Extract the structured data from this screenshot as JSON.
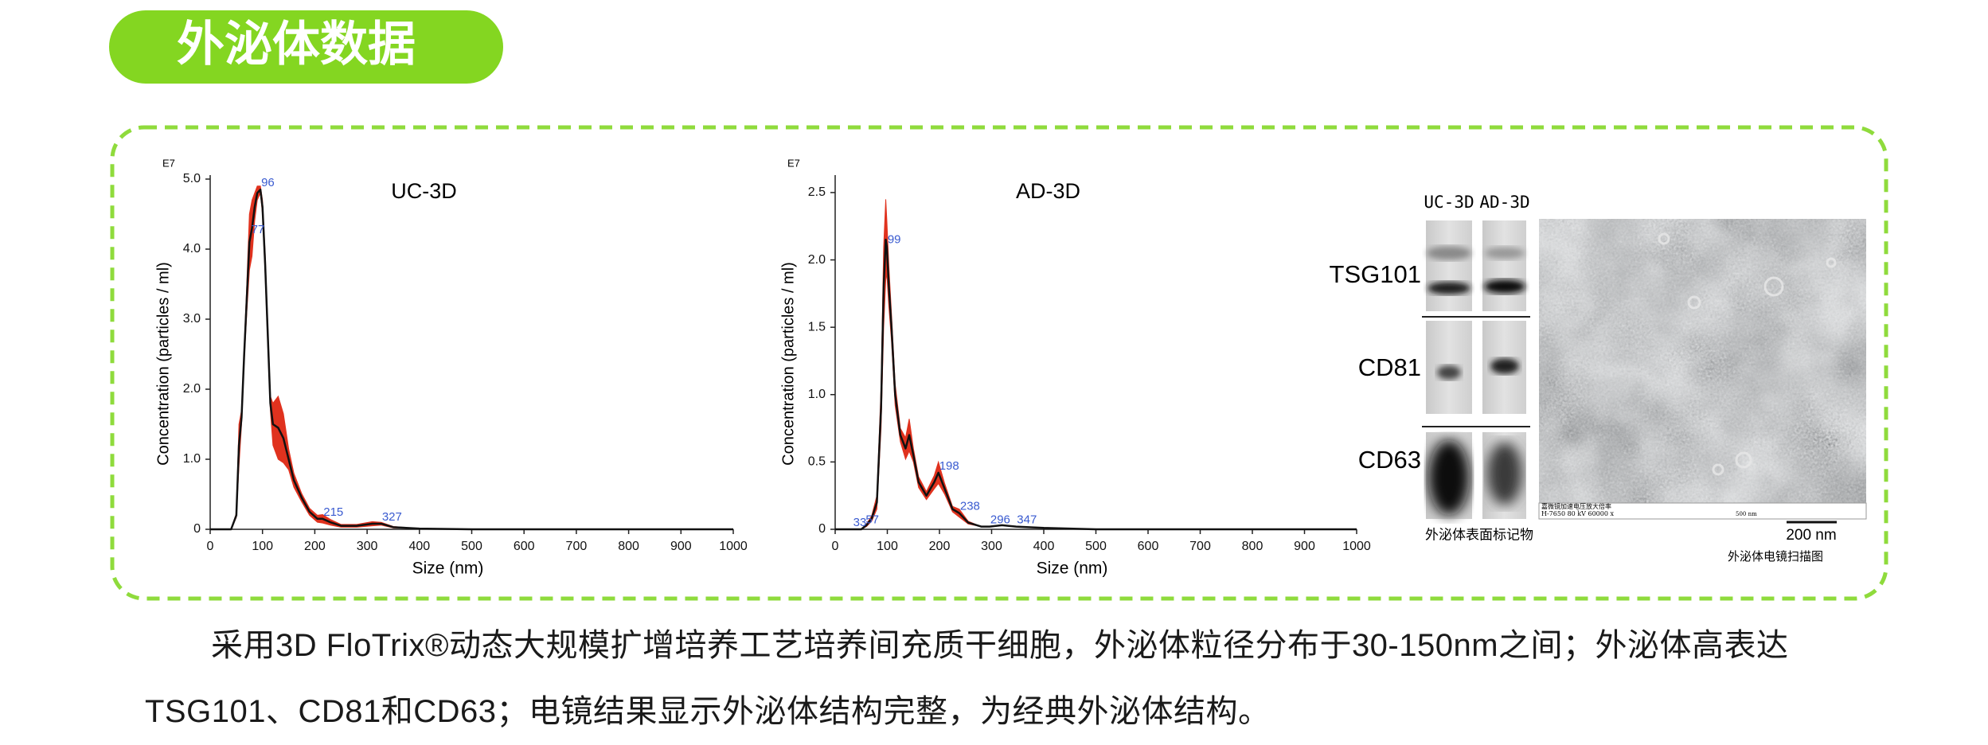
{
  "header": {
    "title": "外泌体数据"
  },
  "chart_data": [
    {
      "type": "line",
      "title": "UC-3D",
      "y_unit": "E7",
      "y_label": "Concentration (particles / ml)",
      "x_label": "Size (nm)",
      "color": "#111111",
      "band_color": "#e0321e",
      "peak_color": "#3a5bd0",
      "x": [
        0,
        40,
        50,
        55,
        60,
        65,
        70,
        75,
        80,
        85,
        90,
        96,
        100,
        105,
        110,
        115,
        120,
        130,
        140,
        150,
        160,
        175,
        190,
        205,
        215,
        230,
        250,
        280,
        310,
        327,
        350,
        400,
        500,
        1000
      ],
      "values": [
        0,
        0,
        0.2,
        1.2,
        1.6,
        2.5,
        3.3,
        4.1,
        4.3,
        4.6,
        4.8,
        4.85,
        4.6,
        3.8,
        2.8,
        1.8,
        1.5,
        1.45,
        1.3,
        1.0,
        0.7,
        0.45,
        0.25,
        0.15,
        0.15,
        0.1,
        0.05,
        0.05,
        0.08,
        0.08,
        0.03,
        0.01,
        0,
        0
      ],
      "errors": [
        0,
        0,
        0.03,
        0.3,
        0.1,
        0.1,
        0.2,
        0.4,
        0.4,
        0.2,
        0.1,
        0.05,
        0.1,
        0.15,
        0.15,
        0.1,
        0.3,
        0.45,
        0.35,
        0.15,
        0.1,
        0.06,
        0.05,
        0.05,
        0.06,
        0.04,
        0.02,
        0.02,
        0.03,
        0.02,
        0.01,
        0,
        0,
        0
      ],
      "peaks": [
        96,
        77,
        215,
        327
      ],
      "xlim": [
        0,
        1000
      ],
      "xticks": [
        0,
        100,
        200,
        300,
        400,
        500,
        600,
        700,
        800,
        900,
        1000
      ],
      "ylim": [
        0,
        5.0
      ],
      "yticks": [
        0,
        {
          "value": 1,
          "label": "1.0"
        },
        {
          "value": 2,
          "label": "2.0"
        },
        {
          "value": 3,
          "label": "3.0"
        },
        {
          "value": 4,
          "label": "4.0"
        },
        {
          "value": 5,
          "label": "5.0"
        }
      ]
    },
    {
      "type": "line",
      "title": "AD-3D",
      "y_unit": "E7",
      "y_label": "Concentration (particles / ml)",
      "x_label": "Size (nm)",
      "color": "#111111",
      "band_color": "#e0321e",
      "peak_color": "#3a5bd0",
      "x": [
        0,
        50,
        60,
        70,
        80,
        88,
        93,
        97,
        99,
        103,
        108,
        115,
        125,
        135,
        142,
        150,
        160,
        175,
        190,
        198,
        210,
        225,
        238,
        255,
        280,
        296,
        320,
        347,
        400,
        500,
        1000
      ],
      "values": [
        0,
        0,
        0.03,
        0.08,
        0.2,
        0.9,
        1.8,
        2.15,
        2.1,
        1.8,
        1.5,
        1.0,
        0.7,
        0.6,
        0.7,
        0.55,
        0.35,
        0.25,
        0.35,
        0.42,
        0.3,
        0.15,
        0.12,
        0.05,
        0.02,
        0.02,
        0.03,
        0.02,
        0.01,
        0,
        0
      ],
      "errors": [
        0,
        0,
        0.01,
        0.02,
        0.05,
        0.15,
        0.3,
        0.3,
        0.2,
        0.15,
        0.1,
        0.08,
        0.05,
        0.08,
        0.12,
        0.05,
        0.04,
        0.03,
        0.05,
        0.08,
        0.04,
        0.02,
        0.03,
        0.01,
        0,
        0,
        0,
        0,
        0,
        0,
        0
      ],
      "peaks": [
        33,
        57,
        99,
        198,
        238,
        296,
        347
      ],
      "xlim": [
        0,
        1000
      ],
      "xticks": [
        0,
        100,
        200,
        300,
        400,
        500,
        600,
        700,
        800,
        900,
        1000
      ],
      "ylim": [
        0,
        2.6
      ],
      "yticks": [
        0,
        0.5,
        {
          "value": 1,
          "label": "1.0"
        },
        1.5,
        {
          "value": 2,
          "label": "2.0"
        },
        2.5
      ]
    }
  ],
  "blot": {
    "columns": [
      "UC-3D",
      "AD-3D"
    ],
    "rows": [
      "TSG101",
      "CD81",
      "CD63"
    ],
    "caption": "外泌体表面标记物"
  },
  "em": {
    "info": [
      "嘉微镜加速电压放大倍率",
      "H-7650  80 kV  60000 x",
      "500 nm"
    ],
    "scale": "200 nm",
    "caption": "外泌体电镜扫描图"
  },
  "paragraph": "采用3D FloTrix®动态大规模扩增培养工艺培养间充质干细胞，外泌体粒径分布于30-150nm之间；外泌体高表达TSG101、CD81和CD63；电镜结果显示外泌体结构完整，为经典外泌体结构。"
}
